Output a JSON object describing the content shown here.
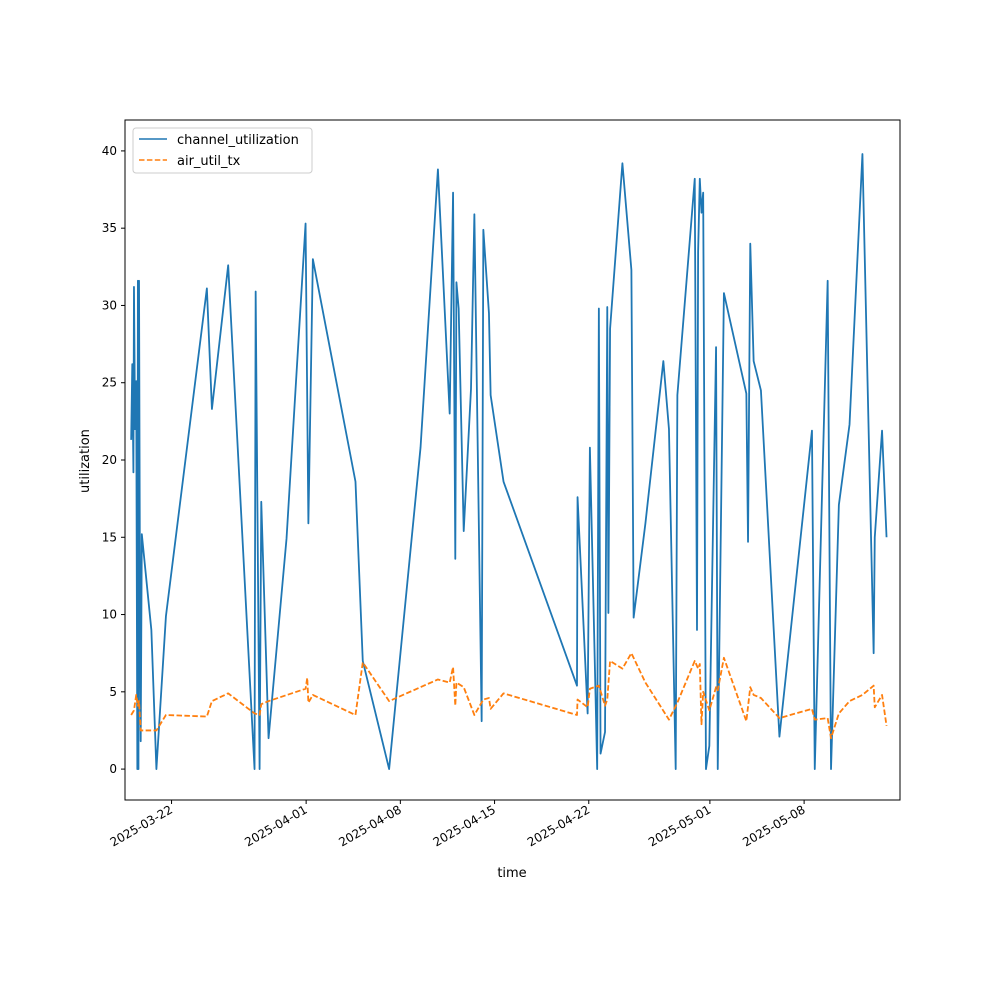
{
  "chart_data": {
    "type": "line",
    "title": "",
    "xlabel": "time",
    "ylabel": "utilization",
    "x_type": "date",
    "xlim": [
      "2025-03-18T13:00",
      "2025-05-15T03:00"
    ],
    "ylim": [
      -2,
      42
    ],
    "x_ticks": [
      "2025-03-22",
      "2025-04-01",
      "2025-04-08",
      "2025-04-15",
      "2025-04-22",
      "2025-05-01",
      "2025-05-08"
    ],
    "y_ticks": [
      0,
      5,
      10,
      15,
      20,
      25,
      30,
      35,
      40
    ],
    "grid": false,
    "legend_position": "top-left",
    "series": [
      {
        "name": "channel_utilization",
        "color": "#1f77b4",
        "line_style": "solid",
        "points": [
          [
            "2025-03-19T00:00",
            21.3
          ],
          [
            "2025-03-19T02:00",
            26.2
          ],
          [
            "2025-03-19T04:00",
            19.2
          ],
          [
            "2025-03-19T05:00",
            31.2
          ],
          [
            "2025-03-19T07:00",
            22.0
          ],
          [
            "2025-03-19T09:00",
            25.1
          ],
          [
            "2025-03-19T11:00",
            0.0
          ],
          [
            "2025-03-19T12:00",
            31.6
          ],
          [
            "2025-03-19T13:00",
            0.0
          ],
          [
            "2025-03-19T14:00",
            31.6
          ],
          [
            "2025-03-19T16:00",
            7.6
          ],
          [
            "2025-03-19T17:00",
            1.8
          ],
          [
            "2025-03-19T19:00",
            15.2
          ],
          [
            "2025-03-20T12:00",
            9.0
          ],
          [
            "2025-03-20T21:00",
            0.0
          ],
          [
            "2025-03-21T14:00",
            9.9
          ],
          [
            "2025-03-24T15:00",
            31.1
          ],
          [
            "2025-03-25T00:00",
            23.3
          ],
          [
            "2025-03-26T05:00",
            32.6
          ],
          [
            "2025-03-28T04:00",
            0.0
          ],
          [
            "2025-03-28T06:00",
            30.9
          ],
          [
            "2025-03-28T13:00",
            0.0
          ],
          [
            "2025-03-28T16:00",
            17.3
          ],
          [
            "2025-03-29T05:00",
            2.0
          ],
          [
            "2025-03-30T13:00",
            14.9
          ],
          [
            "2025-03-31T23:00",
            35.3
          ],
          [
            "2025-04-01T04:00",
            15.9
          ],
          [
            "2025-04-01T12:00",
            33.0
          ],
          [
            "2025-04-04T16:00",
            18.6
          ],
          [
            "2025-04-05T05:00",
            7.0
          ],
          [
            "2025-04-07T04:00",
            0.0
          ],
          [
            "2025-04-09T12:00",
            20.8
          ],
          [
            "2025-04-10T19:00",
            38.8
          ],
          [
            "2025-04-11T16:00",
            23.0
          ],
          [
            "2025-04-11T22:00",
            37.3
          ],
          [
            "2025-04-12T02:00",
            13.6
          ],
          [
            "2025-04-12T04:00",
            31.5
          ],
          [
            "2025-04-12T08:00",
            29.8
          ],
          [
            "2025-04-12T17:00",
            15.4
          ],
          [
            "2025-04-13T06:00",
            24.6
          ],
          [
            "2025-04-13T12:00",
            35.9
          ],
          [
            "2025-04-14T01:00",
            3.1
          ],
          [
            "2025-04-14T04:00",
            34.9
          ],
          [
            "2025-04-14T14:00",
            29.5
          ],
          [
            "2025-04-14T17:00",
            24.2
          ],
          [
            "2025-04-15T16:00",
            18.6
          ],
          [
            "2025-04-21T03:00",
            5.4
          ],
          [
            "2025-04-21T04:00",
            17.6
          ],
          [
            "2025-04-21T22:00",
            3.6
          ],
          [
            "2025-04-22T02:00",
            20.8
          ],
          [
            "2025-04-22T12:00",
            4.9
          ],
          [
            "2025-04-22T15:00",
            0.0
          ],
          [
            "2025-04-22T18:00",
            29.8
          ],
          [
            "2025-04-22T21:00",
            1.0
          ],
          [
            "2025-04-23T05:00",
            2.4
          ],
          [
            "2025-04-23T09:00",
            29.9
          ],
          [
            "2025-04-23T11:00",
            10.1
          ],
          [
            "2025-04-23T14:00",
            28.5
          ],
          [
            "2025-04-24T12:00",
            39.2
          ],
          [
            "2025-04-25T04:00",
            32.3
          ],
          [
            "2025-04-25T08:00",
            9.8
          ],
          [
            "2025-04-26T05:00",
            15.9
          ],
          [
            "2025-04-27T13:00",
            26.4
          ],
          [
            "2025-04-27T23:00",
            22.0
          ],
          [
            "2025-04-28T11:00",
            0.0
          ],
          [
            "2025-04-28T14:00",
            24.2
          ],
          [
            "2025-04-29T21:00",
            38.2
          ],
          [
            "2025-04-30T01:00",
            9.0
          ],
          [
            "2025-04-30T03:00",
            33.5
          ],
          [
            "2025-04-30T06:00",
            38.2
          ],
          [
            "2025-04-30T09:00",
            36.0
          ],
          [
            "2025-04-30T12:00",
            37.3
          ],
          [
            "2025-04-30T17:00",
            0.0
          ],
          [
            "2025-04-30T23:00",
            1.5
          ],
          [
            "2025-05-01T11:00",
            27.3
          ],
          [
            "2025-05-01T14:00",
            0.0
          ],
          [
            "2025-05-02T01:00",
            30.8
          ],
          [
            "2025-05-03T17:00",
            24.3
          ],
          [
            "2025-05-03T20:00",
            14.7
          ],
          [
            "2025-05-04T00:00",
            34.0
          ],
          [
            "2025-05-04T06:00",
            26.4
          ],
          [
            "2025-05-04T19:00",
            24.5
          ],
          [
            "2025-05-06T04:00",
            2.1
          ],
          [
            "2025-05-08T14:00",
            21.9
          ],
          [
            "2025-05-08T19:00",
            0.0
          ],
          [
            "2025-05-09T18:00",
            31.6
          ],
          [
            "2025-05-10T00:00",
            0.0
          ],
          [
            "2025-05-10T14:00",
            17.1
          ],
          [
            "2025-05-11T09:00",
            22.3
          ],
          [
            "2025-05-12T08:00",
            39.8
          ],
          [
            "2025-05-13T04:00",
            7.5
          ],
          [
            "2025-05-13T06:00",
            15.0
          ],
          [
            "2025-05-13T19:00",
            21.9
          ],
          [
            "2025-05-14T03:00",
            15.0
          ]
        ]
      },
      {
        "name": "air_util_tx",
        "color": "#ff7f0e",
        "line_style": "dashed",
        "points": [
          [
            "2025-03-19T00:00",
            3.5
          ],
          [
            "2025-03-19T05:00",
            3.8
          ],
          [
            "2025-03-19T09:00",
            4.8
          ],
          [
            "2025-03-19T12:00",
            4.1
          ],
          [
            "2025-03-19T14:00",
            4.4
          ],
          [
            "2025-03-19T17:00",
            2.5
          ],
          [
            "2025-03-20T12:00",
            2.5
          ],
          [
            "2025-03-20T21:00",
            2.5
          ],
          [
            "2025-03-21T14:00",
            3.5
          ],
          [
            "2025-03-24T15:00",
            3.4
          ],
          [
            "2025-03-25T00:00",
            4.4
          ],
          [
            "2025-03-26T05:00",
            4.9
          ],
          [
            "2025-03-28T04:00",
            3.6
          ],
          [
            "2025-03-28T13:00",
            3.5
          ],
          [
            "2025-03-28T16:00",
            4.2
          ],
          [
            "2025-03-29T05:00",
            4.4
          ],
          [
            "2025-03-31T23:00",
            5.2
          ],
          [
            "2025-04-01T02:00",
            5.9
          ],
          [
            "2025-04-01T04:00",
            4.3
          ],
          [
            "2025-04-01T12:00",
            4.8
          ],
          [
            "2025-04-04T16:00",
            3.5
          ],
          [
            "2025-04-05T05:00",
            6.9
          ],
          [
            "2025-04-07T04:00",
            4.4
          ],
          [
            "2025-04-10T19:00",
            5.8
          ],
          [
            "2025-04-11T16:00",
            5.6
          ],
          [
            "2025-04-11T22:00",
            6.6
          ],
          [
            "2025-04-12T02:00",
            4.1
          ],
          [
            "2025-04-12T04:00",
            5.6
          ],
          [
            "2025-04-12T17:00",
            5.3
          ],
          [
            "2025-04-13T12:00",
            3.5
          ],
          [
            "2025-04-14T04:00",
            4.5
          ],
          [
            "2025-04-14T14:00",
            4.6
          ],
          [
            "2025-04-14T17:00",
            3.9
          ],
          [
            "2025-04-15T16:00",
            4.9
          ],
          [
            "2025-04-21T03:00",
            3.5
          ],
          [
            "2025-04-21T04:00",
            4.5
          ],
          [
            "2025-04-21T22:00",
            4.0
          ],
          [
            "2025-04-22T02:00",
            5.2
          ],
          [
            "2025-04-22T18:00",
            5.4
          ],
          [
            "2025-04-23T05:00",
            4.1
          ],
          [
            "2025-04-23T09:00",
            4.5
          ],
          [
            "2025-04-23T14:00",
            7.0
          ],
          [
            "2025-04-24T12:00",
            6.5
          ],
          [
            "2025-04-25T04:00",
            7.5
          ],
          [
            "2025-04-26T05:00",
            5.6
          ],
          [
            "2025-04-27T23:00",
            3.2
          ],
          [
            "2025-04-28T14:00",
            4.3
          ],
          [
            "2025-04-29T21:00",
            7.0
          ],
          [
            "2025-04-30T03:00",
            6.5
          ],
          [
            "2025-04-30T06:00",
            6.8
          ],
          [
            "2025-04-30T09:00",
            2.9
          ],
          [
            "2025-04-30T12:00",
            5.0
          ],
          [
            "2025-04-30T23:00",
            3.8
          ],
          [
            "2025-05-01T11:00",
            5.3
          ],
          [
            "2025-05-01T14:00",
            5.1
          ],
          [
            "2025-05-02T01:00",
            7.2
          ],
          [
            "2025-05-03T17:00",
            3.1
          ],
          [
            "2025-05-04T00:00",
            5.3
          ],
          [
            "2025-05-04T06:00",
            4.8
          ],
          [
            "2025-05-04T19:00",
            4.6
          ],
          [
            "2025-05-06T04:00",
            3.3
          ],
          [
            "2025-05-08T14:00",
            3.9
          ],
          [
            "2025-05-08T19:00",
            3.2
          ],
          [
            "2025-05-09T18:00",
            3.3
          ],
          [
            "2025-05-10T00:00",
            2.0
          ],
          [
            "2025-05-10T14:00",
            3.6
          ],
          [
            "2025-05-11T09:00",
            4.4
          ],
          [
            "2025-05-12T08:00",
            4.8
          ],
          [
            "2025-05-13T04:00",
            5.4
          ],
          [
            "2025-05-13T06:00",
            4.0
          ],
          [
            "2025-05-13T19:00",
            4.8
          ],
          [
            "2025-05-14T03:00",
            2.8
          ]
        ]
      }
    ]
  }
}
